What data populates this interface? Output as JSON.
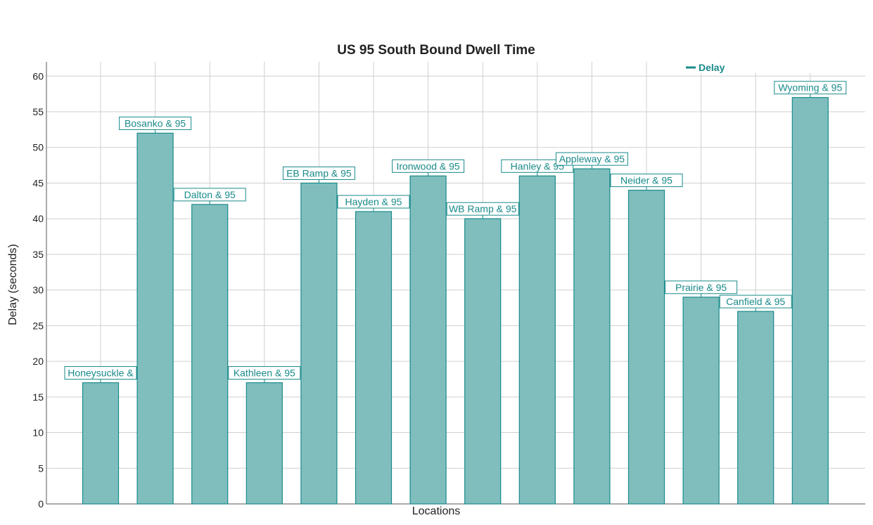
{
  "chart_data": {
    "type": "bar",
    "title": "US 95 South Bound Dwell Time",
    "xlabel": "Locations",
    "ylabel": "Delay (seconds)",
    "ylim": [
      0,
      62
    ],
    "yticks": [
      0,
      5,
      10,
      15,
      20,
      25,
      30,
      35,
      40,
      45,
      50,
      55,
      60
    ],
    "grid": true,
    "legend_position": "top-right",
    "series": [
      {
        "name": "Delay",
        "color": "#80bebe",
        "stroke": "#1a8a8a",
        "values": [
          17,
          52,
          42,
          17,
          45,
          41,
          46,
          40,
          46,
          47,
          44,
          29,
          27,
          57
        ]
      }
    ],
    "data_labels": [
      "Honeysuckle &",
      "Bosanko & 95",
      "Dalton & 95",
      "Kathleen & 95",
      "EB Ramp & 95",
      "Hayden & 95",
      "Ironwood & 95",
      "WB Ramp & 95",
      "Hanley & 95",
      "Appleway & 95",
      "Neider & 95",
      "Prairie & 95",
      "Canfield & 95",
      "Wyoming & 95"
    ]
  }
}
